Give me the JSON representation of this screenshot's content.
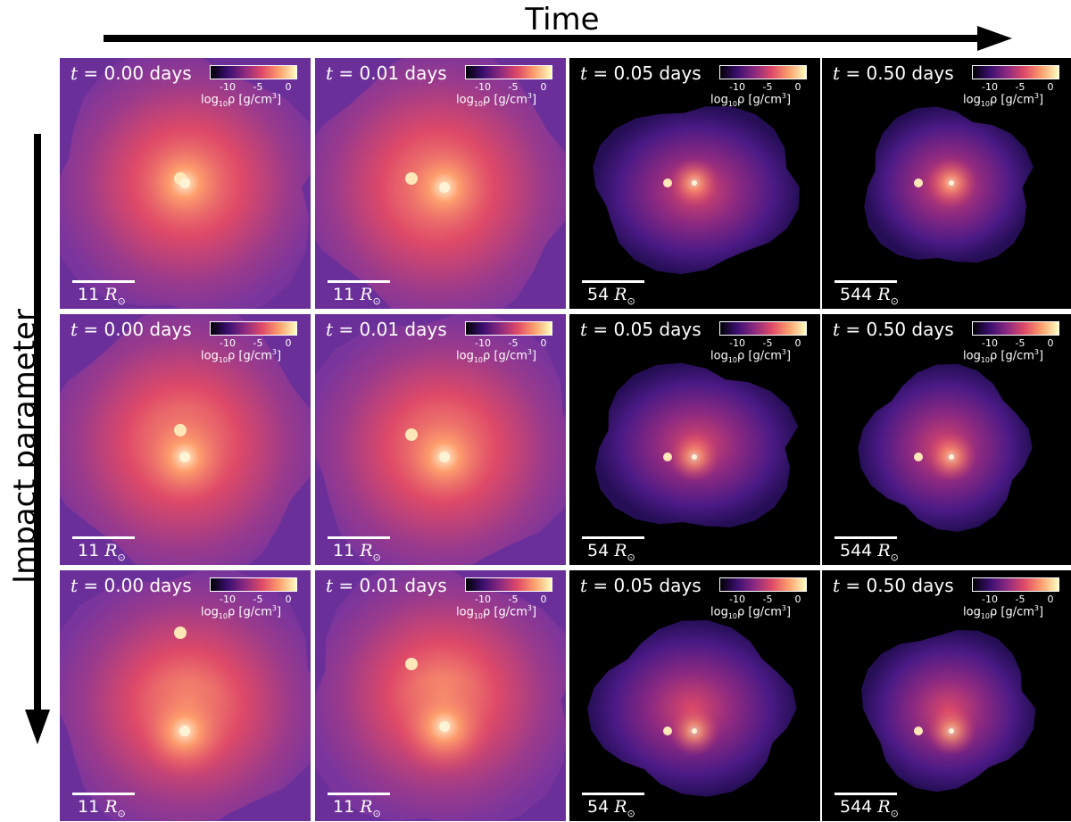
{
  "axes": {
    "time_label": "Time",
    "impact_label": "Impact parameter"
  },
  "colorbar": {
    "ticks": [
      "-10",
      "-5",
      "0"
    ],
    "label_prefix": "log",
    "label_sub": "10",
    "label_mid": "ρ [g/cm",
    "label_sup": "3",
    "label_suffix": "]"
  },
  "time_prefix": "t",
  "scale_unit": "R",
  "scale_unit_sub": "⊙",
  "columns": [
    {
      "time": "= 0.00 days",
      "scale": "11"
    },
    {
      "time": "= 0.01 days",
      "scale": "11"
    },
    {
      "time": "= 0.05 days",
      "scale": "54"
    },
    {
      "time": "= 0.50 days",
      "scale": "544"
    }
  ],
  "colors": {
    "cmap": [
      "#000004",
      "#3b0f70",
      "#8c2981",
      "#de4968",
      "#fe9f6d",
      "#fcfdbf"
    ],
    "early_bg": "#6b2f9a",
    "late_bg": "#000000"
  }
}
